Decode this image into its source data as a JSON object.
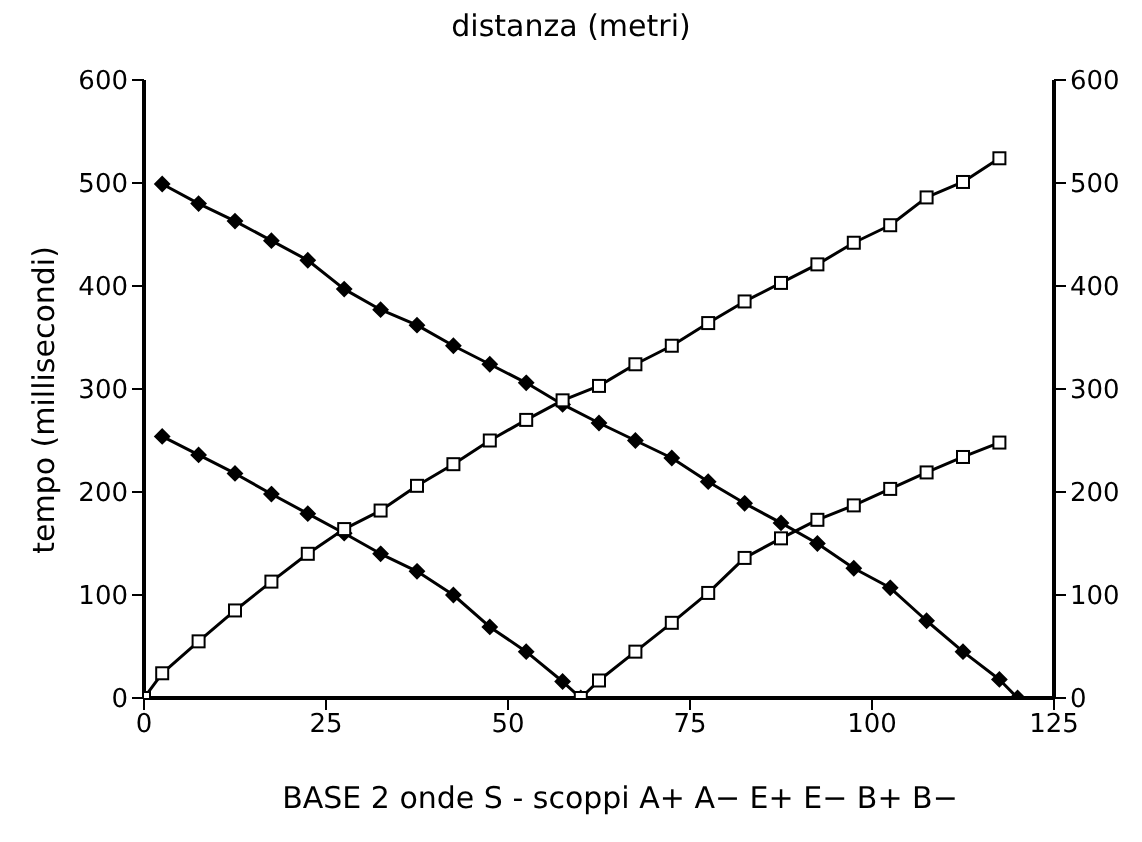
{
  "chart_data": {
    "type": "line",
    "title": "distanza (metri)",
    "xlabel": "BASE 2 onde S - scoppi A+ A− E+ E− B+ B−",
    "ylabel": "tempo (millisecondi)",
    "xlim": [
      0,
      125
    ],
    "xticks": [
      0,
      25,
      50,
      75,
      100,
      125
    ],
    "ylim": [
      0,
      600
    ],
    "yticks": [
      0,
      100,
      200,
      300,
      400,
      500,
      600
    ],
    "y2lim": [
      0,
      600
    ],
    "y2ticks": [
      0,
      100,
      200,
      300,
      400,
      500,
      600
    ],
    "grid": false,
    "legend": false,
    "series": [
      {
        "color": "#000000",
        "marker": "diamond",
        "x": [
          2.5,
          7.5,
          12.5,
          17.5,
          22.5,
          27.5,
          32.5,
          37.5,
          42.5,
          47.5,
          52.5,
          57.5,
          62.5,
          67.5,
          72.5,
          77.5,
          82.5,
          87.5,
          92.5,
          97.5,
          102.5,
          107.5,
          112.5,
          117.5,
          120
        ],
        "values": [
          499,
          480,
          463,
          444,
          425,
          397,
          377,
          362,
          342,
          324,
          306,
          285,
          267,
          250,
          233,
          210,
          189,
          170,
          150,
          126,
          107,
          75,
          45,
          18,
          0
        ]
      },
      {
        "color": "#000000",
        "marker": "diamond",
        "x": [
          2.5,
          7.5,
          12.5,
          17.5,
          22.5,
          27.5,
          32.5,
          37.5,
          42.5,
          47.5,
          52.5,
          57.5,
          60
        ],
        "values": [
          254,
          236,
          218,
          198,
          179,
          160,
          140,
          123,
          100,
          69,
          45,
          16,
          0
        ]
      },
      {
        "color": "#000000",
        "marker": "square",
        "x": [
          60,
          62.5,
          67.5,
          72.5,
          77.5,
          82.5,
          87.5,
          92.5,
          97.5,
          102.5,
          107.5,
          112.5,
          117.5
        ],
        "values": [
          0,
          17,
          45,
          73,
          102,
          136,
          155,
          173,
          187,
          203,
          219,
          234,
          248
        ]
      },
      {
        "color": "#000000",
        "marker": "square",
        "x": [
          0,
          2.5,
          7.5,
          12.5,
          17.5,
          22.5,
          27.5,
          32.5,
          37.5,
          42.5,
          47.5,
          52.5,
          57.5,
          62.5,
          67.5,
          72.5,
          77.5,
          82.5,
          87.5,
          92.5,
          97.5,
          102.5,
          107.5,
          112.5,
          117.5
        ],
        "values": [
          0,
          24,
          55,
          85,
          113,
          140,
          164,
          182,
          206,
          227,
          250,
          270,
          289,
          303,
          324,
          342,
          364,
          385,
          403,
          421,
          442,
          459,
          486,
          501,
          524
        ]
      }
    ]
  }
}
